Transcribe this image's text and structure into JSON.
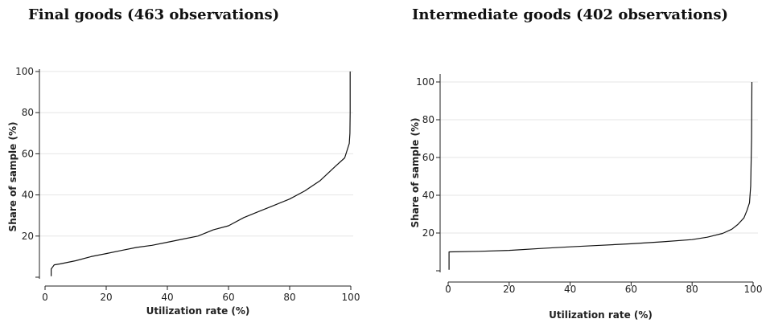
{
  "chart_data": [
    {
      "type": "line",
      "title": "Final goods (463 observations)",
      "xlabel": "Utilization rate (%)",
      "ylabel": "Share of sample (%)",
      "xlim": [
        0,
        100
      ],
      "ylim": [
        0,
        100
      ],
      "xticks": [
        "0",
        "20",
        "40",
        "60",
        "80",
        "100"
      ],
      "yticks": [
        "20",
        "40",
        "60",
        "80",
        "100"
      ],
      "grid": true,
      "series": [
        {
          "x": [
            2,
            2,
            3,
            5,
            10,
            15,
            20,
            25,
            30,
            35,
            40,
            45,
            50,
            55,
            60,
            65,
            70,
            75,
            80,
            85,
            90,
            95,
            98,
            99.5,
            99.7,
            99.8,
            99.8
          ],
          "values": [
            0.5,
            4,
            6,
            6.5,
            8,
            10,
            11.5,
            13,
            14.5,
            15.5,
            17,
            18.5,
            20,
            23,
            25,
            29,
            32,
            35,
            38,
            42,
            47,
            54,
            58,
            65,
            70,
            80,
            100
          ]
        }
      ]
    },
    {
      "type": "line",
      "title": "Intermediate goods (402 observations)",
      "xlabel": "Utilization rate (%)",
      "ylabel": "Share of sample (%)",
      "xlim": [
        0,
        100
      ],
      "ylim": [
        0,
        100
      ],
      "xticks": [
        "0",
        "20",
        "40",
        "60",
        "80",
        "100"
      ],
      "yticks": [
        "20",
        "40",
        "60",
        "80",
        "100"
      ],
      "grid": true,
      "series": [
        {
          "x": [
            0.3,
            0.3,
            10,
            20,
            30,
            40,
            50,
            60,
            70,
            80,
            85,
            90,
            93,
            95,
            97,
            98,
            98.8,
            99.2,
            99.5,
            99.6
          ],
          "values": [
            0.5,
            10,
            10.3,
            10.8,
            11.8,
            12.7,
            13.5,
            14.3,
            15.3,
            16.5,
            17.8,
            19.8,
            22,
            24.5,
            28,
            32,
            36,
            45,
            70,
            100
          ]
        }
      ]
    }
  ]
}
